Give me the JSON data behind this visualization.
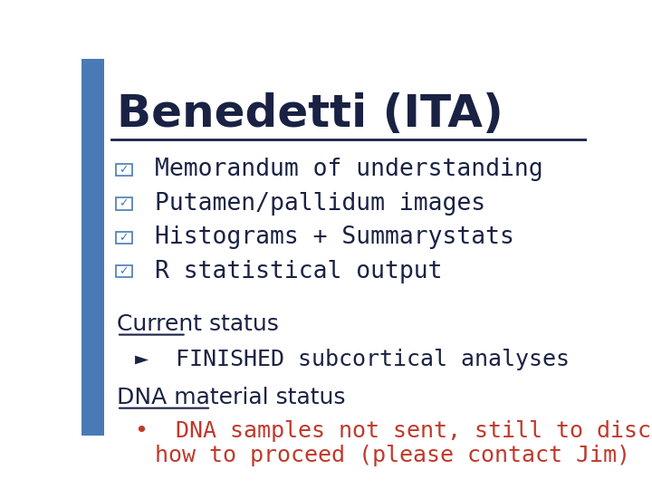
{
  "title": "Benedetti (ITA)",
  "title_color": "#1a2244",
  "title_fontsize": 36,
  "separator_color": "#1a2244",
  "bg_color": "#ffffff",
  "sidebar_color": "#4a7ab5",
  "bullet_items": [
    "Memorandum of understanding",
    "Putamen/pallidum images",
    "Histograms + Summarystats",
    "R statistical output"
  ],
  "bullet_color": "#1a2244",
  "bullet_fontsize": 19,
  "checkbox_color": "#4a7ab5",
  "section1_label": "Current status",
  "section1_color": "#1a2244",
  "section1_fontsize": 18,
  "sub1_arrow": "►",
  "sub1_text": "FINISHED subcortical analyses",
  "sub1_color": "#1a2244",
  "sub1_fontsize": 18,
  "section2_label": "DNA material status",
  "section2_color": "#1a2244",
  "section2_fontsize": 18,
  "sub2_bullet": "•",
  "sub2_line1": "DNA samples not sent, still to discuss",
  "sub2_line2": "how to proceed (please contact Jim)",
  "sub2_color": "#c0392b",
  "sub2_fontsize": 18
}
